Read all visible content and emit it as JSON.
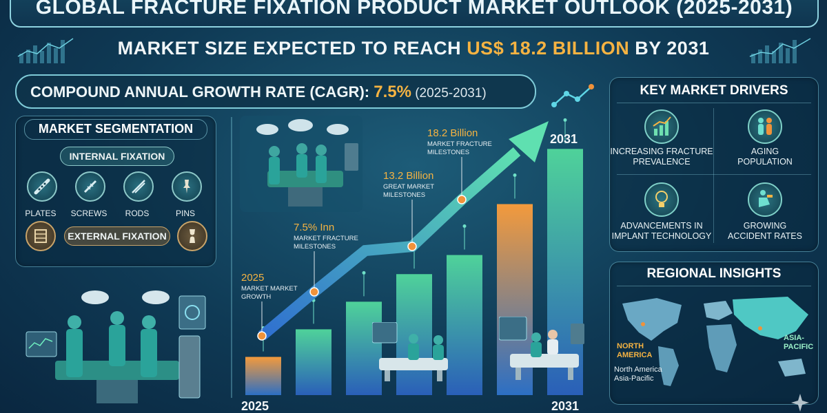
{
  "header": {
    "title": "GLOBAL FRACTURE FIXATION PRODUCT MARKET OUTLOOK (2025-2031)",
    "subtitle_pre": "MARKET SIZE EXPECTED TO REACH ",
    "subtitle_value": "US$ 18.2 BILLION",
    "subtitle_post": " BY 2031"
  },
  "cagr": {
    "label": "COMPOUND ANNUAL GROWTH RATE (CAGR): ",
    "value": "7.5%",
    "years": " (2025-2031)"
  },
  "segmentation": {
    "title": "MARKET SEGMENTATION",
    "internal_label": "INTERNAL FIXATION",
    "items": [
      {
        "label": "PLATES",
        "icon": "plate-icon"
      },
      {
        "label": "SCREWS",
        "icon": "screw-icon"
      },
      {
        "label": "RODS",
        "icon": "rod-icon"
      },
      {
        "label": "PINS",
        "icon": "pin-icon"
      }
    ],
    "external_label": "EXTERNAL FIXATION"
  },
  "chart_data": {
    "type": "bar",
    "title": "",
    "xlabel": "",
    "ylabel": "",
    "x_start_label": "2025",
    "x_end_label": "2031",
    "top_label": "2031",
    "values": [
      0.9,
      1.55,
      2.2,
      2.85,
      3.3,
      4.5,
      5.8
    ],
    "colors": [
      "#f0923a",
      "#3aa58e",
      "#3aa58e",
      "#3aa58e",
      "#3aa58e",
      "#f0923a",
      "#5fcf9a"
    ],
    "annotations": [
      {
        "value": "2025",
        "sub1": "MARKET MARKET",
        "sub2": "GROWTH"
      },
      {
        "value": "7.5% Inn",
        "sub1": "MARKET FRACTURE",
        "sub2": "MILESTONES"
      },
      {
        "value": "13.2 Billion",
        "sub1": "GREAT MARKET",
        "sub2": "MILESTONES"
      },
      {
        "value": "18.2 Billion",
        "sub1": "MARKET FRACTURE",
        "sub2": "MILESTONES"
      }
    ]
  },
  "drivers": {
    "title": "KEY MARKET DRIVERS",
    "items": [
      {
        "line1": "INCREASING FRACTURE",
        "line2": "PREVALENCE",
        "icon": "trend-chart-icon"
      },
      {
        "line1": "AGING",
        "line2": "POPULATION",
        "icon": "elderly-couple-icon"
      },
      {
        "line1": "ADVANCEMENTS IN",
        "line2": "IMPLANT TECHNOLOGY",
        "icon": "lightbulb-icon"
      },
      {
        "line1": "GROWING",
        "line2": "ACCIDENT RATES",
        "icon": "injury-icon"
      }
    ]
  },
  "regional": {
    "title": "REGIONAL INSIGHTS",
    "na_label_1": "NORTH",
    "na_label_2": "AMERICA",
    "ap_label_1": "ASIA-",
    "ap_label_2": "PACIFIC",
    "legend_1": "North America",
    "legend_2": "Asia-Pacific"
  }
}
